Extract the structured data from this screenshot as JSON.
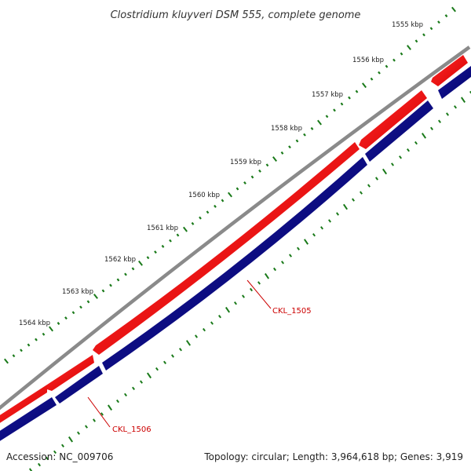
{
  "title": "Clostridium kluyveri DSM 555, complete genome",
  "scale_labels": [
    "1555 kbp",
    "1556 kbp",
    "1557 kbp",
    "1558 kbp",
    "1559 kbp",
    "1560 kbp",
    "1561 kbp",
    "1562 kbp",
    "1563 kbp",
    "1564 kbp"
  ],
  "gene_labels": [
    "CKL_1505",
    "CKL_1506"
  ],
  "footer": {
    "accession": "Accession: NC_009706",
    "stats": "Topology: circular; Length: 3,964,618 bp; Genes: 3,919"
  },
  "colors": {
    "backbone": "#8a8a8a",
    "forward_genes": "#ff0000",
    "reverse_genes": "#000080",
    "ticks": "#1a7a1a",
    "labels": "#cc0000"
  }
}
